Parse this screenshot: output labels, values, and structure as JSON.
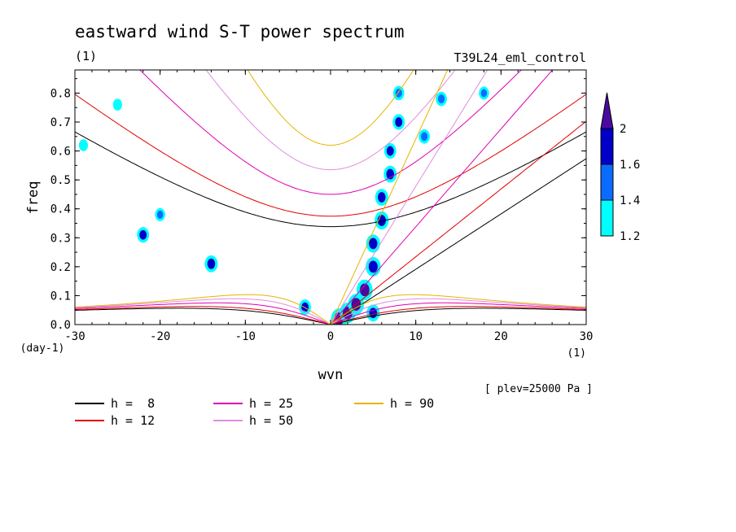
{
  "chart_data": {
    "type": "heatmap",
    "title": "eastward wind S-T power spectrum",
    "subtitle_left": "(1)",
    "subtitle_right": "T39L24_eml_control",
    "xlabel": "wvn",
    "ylabel": "freq",
    "x_unit_label": "(1)",
    "y_unit_label": "(day-1)",
    "annotation": "[ plev=25000 Pa ]",
    "xlim": [
      -30,
      30
    ],
    "ylim": [
      0,
      0.88
    ],
    "x_ticks": [
      -30,
      -20,
      -10,
      0,
      10,
      20,
      30
    ],
    "x_tick_labels": [
      "-30",
      "-20",
      "-10",
      "0",
      "10",
      "20",
      "30"
    ],
    "y_ticks": [
      0,
      0.1,
      0.2,
      0.3,
      0.4,
      0.5,
      0.6,
      0.7,
      0.8
    ],
    "y_tick_labels": [
      "0.0",
      "0.1",
      "0.2",
      "0.3",
      "0.4",
      "0.5",
      "0.6",
      "0.7",
      "0.8"
    ],
    "colorbar": {
      "levels": [
        1.2,
        1.4,
        1.6,
        2
      ],
      "labels": [
        "1.2",
        "1.4",
        "1.6",
        "2"
      ],
      "colors": [
        "#00ffff",
        "#0a6cff",
        "#0000c8",
        "#4a0aa0"
      ]
    },
    "dispersion_curves": [
      {
        "label": "h =  8",
        "h": 8,
        "color": "#000000"
      },
      {
        "label": "h = 12",
        "h": 12,
        "color": "#e00000"
      },
      {
        "label": "h = 25",
        "h": 25,
        "color": "#e000b0"
      },
      {
        "label": "h = 50",
        "h": 50,
        "color": "#e08ce0"
      },
      {
        "label": "h = 90",
        "h": 90,
        "color": "#e6b400"
      }
    ],
    "spectral_peaks": [
      {
        "wvn": 1,
        "freq": 0.02,
        "value": 2.0
      },
      {
        "wvn": 2,
        "freq": 0.04,
        "value": 2.0
      },
      {
        "wvn": 3,
        "freq": 0.07,
        "value": 2.0
      },
      {
        "wvn": 4,
        "freq": 0.12,
        "value": 2.0
      },
      {
        "wvn": 5,
        "freq": 0.2,
        "value": 1.9
      },
      {
        "wvn": 5,
        "freq": 0.28,
        "value": 1.8
      },
      {
        "wvn": 6,
        "freq": 0.36,
        "value": 1.8
      },
      {
        "wvn": 6,
        "freq": 0.44,
        "value": 1.7
      },
      {
        "wvn": 7,
        "freq": 0.52,
        "value": 1.7
      },
      {
        "wvn": 7,
        "freq": 0.6,
        "value": 1.6
      },
      {
        "wvn": 8,
        "freq": 0.7,
        "value": 1.6
      },
      {
        "wvn": 8,
        "freq": 0.8,
        "value": 1.5
      },
      {
        "wvn": -3,
        "freq": 0.06,
        "value": 1.6
      },
      {
        "wvn": 5,
        "freq": 0.04,
        "value": 1.7
      },
      {
        "wvn": 11,
        "freq": 0.65,
        "value": 1.5
      },
      {
        "wvn": 13,
        "freq": 0.78,
        "value": 1.5
      },
      {
        "wvn": 18,
        "freq": 0.8,
        "value": 1.4
      },
      {
        "wvn": -14,
        "freq": 0.21,
        "value": 1.7
      },
      {
        "wvn": -22,
        "freq": 0.31,
        "value": 1.6
      },
      {
        "wvn": -20,
        "freq": 0.38,
        "value": 1.4
      },
      {
        "wvn": -29,
        "freq": 0.62,
        "value": 1.3
      },
      {
        "wvn": -25,
        "freq": 0.76,
        "value": 1.3
      }
    ]
  }
}
